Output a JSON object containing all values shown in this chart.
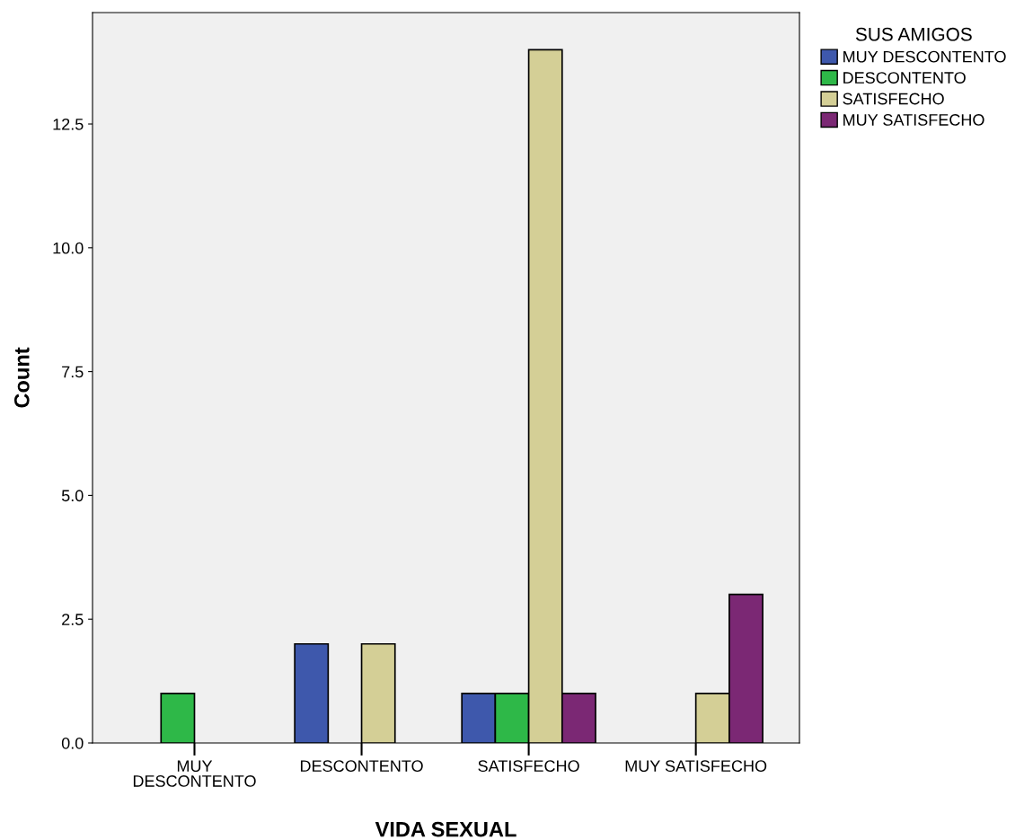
{
  "chart_data": {
    "type": "bar",
    "xlabel": "VIDA SEXUAL",
    "ylabel": "Count",
    "legend_title": "SUS AMIGOS",
    "categories": [
      "MUY\nDESCONTENTO",
      "DESCONTENTO",
      "SATISFECHO",
      "MUY SATISFECHO"
    ],
    "series": [
      {
        "name": "MUY DESCONTENTO",
        "color": "#3e58ac",
        "values": [
          null,
          2,
          1,
          null
        ]
      },
      {
        "name": "DESCONTENTO",
        "color": "#2eb848",
        "values": [
          1,
          null,
          1,
          null
        ]
      },
      {
        "name": "SATISFECHO",
        "color": "#d4cf96",
        "values": [
          null,
          2,
          14,
          1
        ]
      },
      {
        "name": "MUY SATISFECHO",
        "color": "#7b2874",
        "values": [
          null,
          null,
          1,
          3
        ]
      }
    ],
    "ylim": [
      0,
      14.75
    ],
    "yticks": [
      {
        "value": 0,
        "label": "0.0"
      },
      {
        "value": 2.5,
        "label": "2.5"
      },
      {
        "value": 5,
        "label": "5.0"
      },
      {
        "value": 7.5,
        "label": "7.5"
      },
      {
        "value": 10,
        "label": "10.0"
      },
      {
        "value": 12.5,
        "label": "12.5"
      }
    ],
    "grid": false,
    "legend": "top right"
  }
}
